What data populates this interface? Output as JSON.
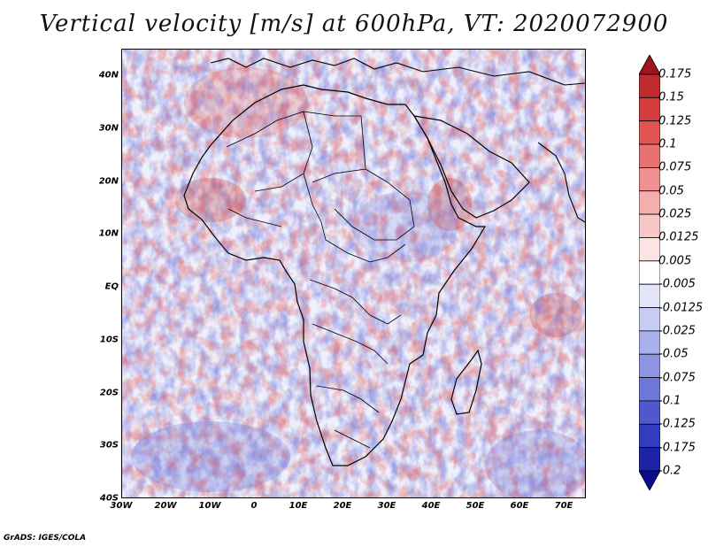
{
  "title": "Vertical velocity [m/s] at 600hPa, VT: 2020072900",
  "footer": "GrADS: IGES/COLA",
  "map": {
    "y_labels": [
      "40N",
      "30N",
      "20N",
      "10N",
      "EQ",
      "10S",
      "20S",
      "30S",
      "40S"
    ],
    "x_labels": [
      "30W",
      "20W",
      "10W",
      "0",
      "10E",
      "20E",
      "30E",
      "40E",
      "50E",
      "60E",
      "70E"
    ]
  },
  "colorbar": {
    "labels": [
      "0.175",
      "0.15",
      "0.125",
      "0.1",
      "0.075",
      "0.05",
      "0.025",
      "0.0125",
      "0.005",
      "-0.005",
      "-0.0125",
      "-0.025",
      "-0.05",
      "-0.075",
      "-0.1",
      "-0.125",
      "-0.175",
      "-0.2"
    ],
    "colors": [
      "#a0141e",
      "#be2a2e",
      "#d23c3c",
      "#e05454",
      "#e87272",
      "#f09090",
      "#f5aeae",
      "#f8c8c8",
      "#fde4e4",
      "#ffffff",
      "#e4e6f8",
      "#c8ccf2",
      "#aab0ec",
      "#8c94e4",
      "#6e76da",
      "#5058ce",
      "#323cc0",
      "#1e24a8",
      "#0c0c90"
    ]
  }
}
